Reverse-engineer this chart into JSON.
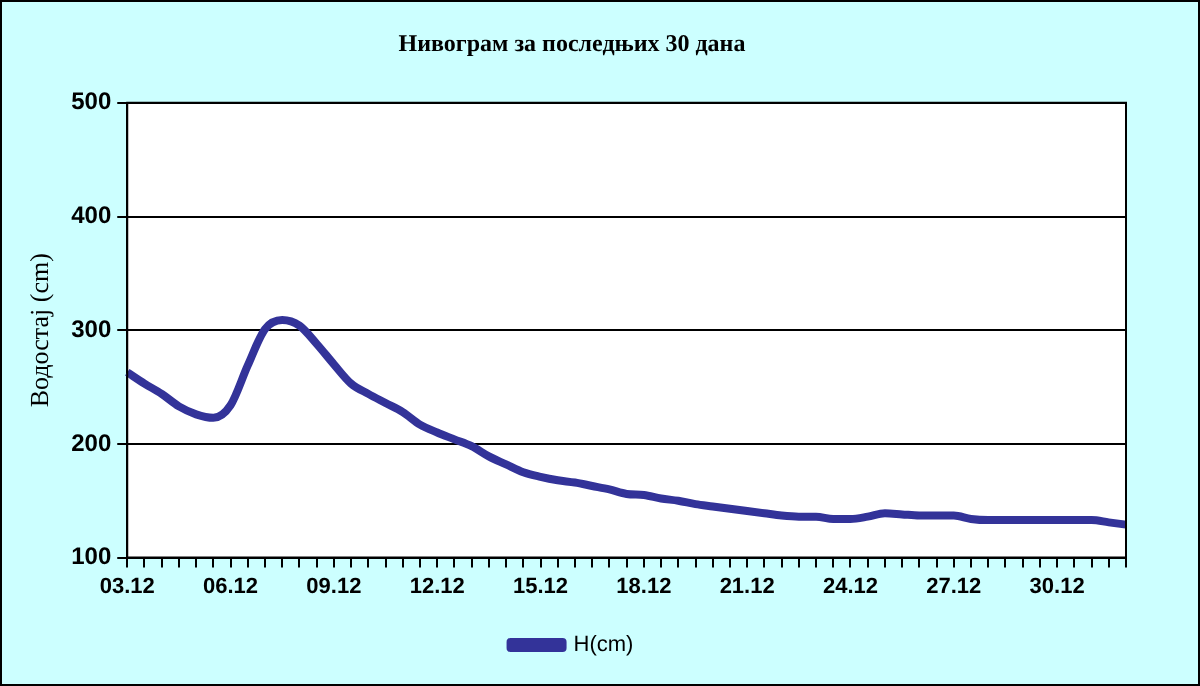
{
  "chart_data": {
    "type": "line",
    "title": "Нивограм за последњих 30 дана",
    "ylabel": "Водостај (cm)",
    "categories": [
      "03.12",
      null,
      null,
      null,
      null,
      null,
      "06.12",
      null,
      null,
      null,
      null,
      null,
      "09.12",
      null,
      null,
      null,
      null,
      null,
      "12.12",
      null,
      null,
      null,
      null,
      null,
      "15.12",
      null,
      null,
      null,
      null,
      null,
      "18.12",
      null,
      null,
      null,
      null,
      null,
      "21.12",
      null,
      null,
      null,
      null,
      null,
      "24.12",
      null,
      null,
      null,
      null,
      null,
      "27.12",
      null,
      null,
      null,
      null,
      null,
      "30.12",
      null,
      null,
      null,
      null
    ],
    "series": [
      {
        "name": "H(cm)",
        "color": "#333399",
        "values": [
          263,
          253,
          244,
          233,
          226,
          223,
          234,
          269,
          301,
          309,
          304,
          288,
          270,
          253,
          244,
          236,
          228,
          217,
          210,
          204,
          198,
          189,
          182,
          175,
          171,
          168,
          166,
          163,
          160,
          156,
          155,
          152,
          150,
          147,
          145,
          143,
          141,
          139,
          137,
          136,
          136,
          134,
          134,
          136,
          139,
          138,
          137,
          137,
          137,
          134,
          133,
          133,
          133,
          133,
          133,
          133,
          133,
          131,
          129
        ]
      }
    ],
    "ylim": [
      100,
      500
    ],
    "yticks": [
      100,
      200,
      300,
      400,
      500
    ],
    "grid": "y",
    "legend": "bottom",
    "marker": "none",
    "line_style": "solid"
  }
}
